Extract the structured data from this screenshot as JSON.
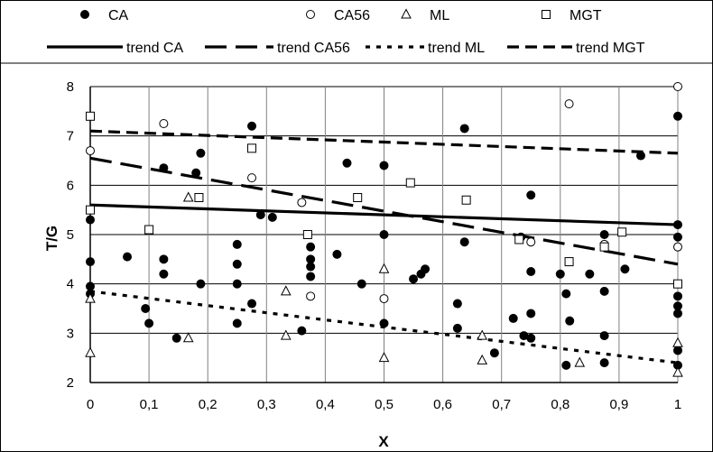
{
  "chart_data": {
    "type": "scatter",
    "xlabel": "X",
    "ylabel": "T/G",
    "xlim": [
      0,
      1
    ],
    "ylim": [
      2,
      8
    ],
    "x_ticks": [
      "0",
      "0,1",
      "0,2",
      "0,3",
      "0,4",
      "0,5",
      "0,6",
      "0,7",
      "0,8",
      "0,9",
      "1"
    ],
    "y_ticks": [
      "2",
      "3",
      "4",
      "5",
      "6",
      "7",
      "8"
    ],
    "grid": "major horizontal and vertical",
    "legend_position": "top",
    "series": [
      {
        "name": "CA",
        "marker": "filled-circle",
        "color": "#000000",
        "points": [
          [
            0,
            3.8
          ],
          [
            0,
            3.95
          ],
          [
            0,
            4.45
          ],
          [
            0,
            5.3
          ],
          [
            0.063,
            4.55
          ],
          [
            0.094,
            3.5
          ],
          [
            0.1,
            3.2
          ],
          [
            0.125,
            6.35
          ],
          [
            0.125,
            4.5
          ],
          [
            0.125,
            4.2
          ],
          [
            0.147,
            2.9
          ],
          [
            0.18,
            6.25
          ],
          [
            0.188,
            6.65
          ],
          [
            0.188,
            4.0
          ],
          [
            0.25,
            4.8
          ],
          [
            0.25,
            4.4
          ],
          [
            0.25,
            4.0
          ],
          [
            0.25,
            3.2
          ],
          [
            0.275,
            7.2
          ],
          [
            0.275,
            3.6
          ],
          [
            0.29,
            5.4
          ],
          [
            0.31,
            5.35
          ],
          [
            0.36,
            3.05
          ],
          [
            0.375,
            4.75
          ],
          [
            0.375,
            4.5
          ],
          [
            0.375,
            4.35
          ],
          [
            0.375,
            4.15
          ],
          [
            0.42,
            4.6
          ],
          [
            0.437,
            6.45
          ],
          [
            0.462,
            4.0
          ],
          [
            0.5,
            6.4
          ],
          [
            0.5,
            5.0
          ],
          [
            0.5,
            3.2
          ],
          [
            0.55,
            4.1
          ],
          [
            0.563,
            4.2
          ],
          [
            0.57,
            4.3
          ],
          [
            0.625,
            3.6
          ],
          [
            0.625,
            3.1
          ],
          [
            0.637,
            7.15
          ],
          [
            0.637,
            4.85
          ],
          [
            0.688,
            2.6
          ],
          [
            0.72,
            3.3
          ],
          [
            0.733,
            4.95
          ],
          [
            0.738,
            2.95
          ],
          [
            0.75,
            5.8
          ],
          [
            0.75,
            4.25
          ],
          [
            0.75,
            3.4
          ],
          [
            0.75,
            2.9
          ],
          [
            0.8,
            4.2
          ],
          [
            0.81,
            3.8
          ],
          [
            0.816,
            3.25
          ],
          [
            0.81,
            2.35
          ],
          [
            0.85,
            4.2
          ],
          [
            0.875,
            5.0
          ],
          [
            0.875,
            3.85
          ],
          [
            0.875,
            2.95
          ],
          [
            0.875,
            2.4
          ],
          [
            0.91,
            4.3
          ],
          [
            0.937,
            6.6
          ],
          [
            1,
            7.4
          ],
          [
            1,
            5.2
          ],
          [
            1,
            4.95
          ],
          [
            1,
            3.75
          ],
          [
            1,
            3.55
          ],
          [
            1,
            3.4
          ],
          [
            1,
            2.65
          ],
          [
            1,
            2.35
          ]
        ]
      },
      {
        "name": "CA56",
        "marker": "open-circle",
        "color": "#000000",
        "points": [
          [
            0,
            6.7
          ],
          [
            0.125,
            7.25
          ],
          [
            0.275,
            6.15
          ],
          [
            0.36,
            5.65
          ],
          [
            0.375,
            3.75
          ],
          [
            0.5,
            3.7
          ],
          [
            0.75,
            4.85
          ],
          [
            0.815,
            7.65
          ],
          [
            0.875,
            4.8
          ],
          [
            1,
            8.0
          ],
          [
            1,
            4.75
          ]
        ]
      },
      {
        "name": "ML",
        "marker": "open-triangle",
        "color": "#000000",
        "points": [
          [
            0,
            3.7
          ],
          [
            0,
            2.6
          ],
          [
            0.167,
            5.75
          ],
          [
            0.167,
            2.9
          ],
          [
            0.333,
            3.85
          ],
          [
            0.333,
            2.95
          ],
          [
            0.5,
            4.3
          ],
          [
            0.5,
            2.5
          ],
          [
            0.667,
            2.95
          ],
          [
            0.667,
            2.45
          ],
          [
            0.833,
            2.4
          ],
          [
            1,
            2.8
          ],
          [
            1,
            2.2
          ]
        ]
      },
      {
        "name": "MGT",
        "marker": "open-square",
        "color": "#000000",
        "points": [
          [
            0,
            7.4
          ],
          [
            0,
            5.5
          ],
          [
            0.1,
            5.1
          ],
          [
            0.185,
            5.75
          ],
          [
            0.275,
            6.75
          ],
          [
            0.37,
            5.0
          ],
          [
            0.455,
            5.75
          ],
          [
            0.545,
            6.05
          ],
          [
            0.64,
            5.7
          ],
          [
            0.73,
            4.9
          ],
          [
            0.815,
            4.45
          ],
          [
            0.875,
            4.75
          ],
          [
            0.905,
            5.05
          ],
          [
            1,
            4.0
          ]
        ]
      }
    ],
    "trends": [
      {
        "name": "trend CA",
        "style": "solid",
        "stroke_width": 3.2,
        "dasharray": "",
        "start": [
          0,
          5.6
        ],
        "end": [
          1,
          5.2
        ]
      },
      {
        "name": "trend CA56",
        "style": "long-dash",
        "stroke_width": 3.2,
        "dasharray": "24 10",
        "start": [
          0,
          6.55
        ],
        "end": [
          1,
          4.4
        ]
      },
      {
        "name": "trend ML",
        "style": "dotted",
        "stroke_width": 3.2,
        "dasharray": "5 7",
        "start": [
          0,
          3.85
        ],
        "end": [
          1,
          2.4
        ]
      },
      {
        "name": "trend MGT",
        "style": "dash",
        "stroke_width": 3.2,
        "dasharray": "13 7",
        "start": [
          0,
          7.1
        ],
        "end": [
          1,
          6.65
        ]
      }
    ]
  }
}
